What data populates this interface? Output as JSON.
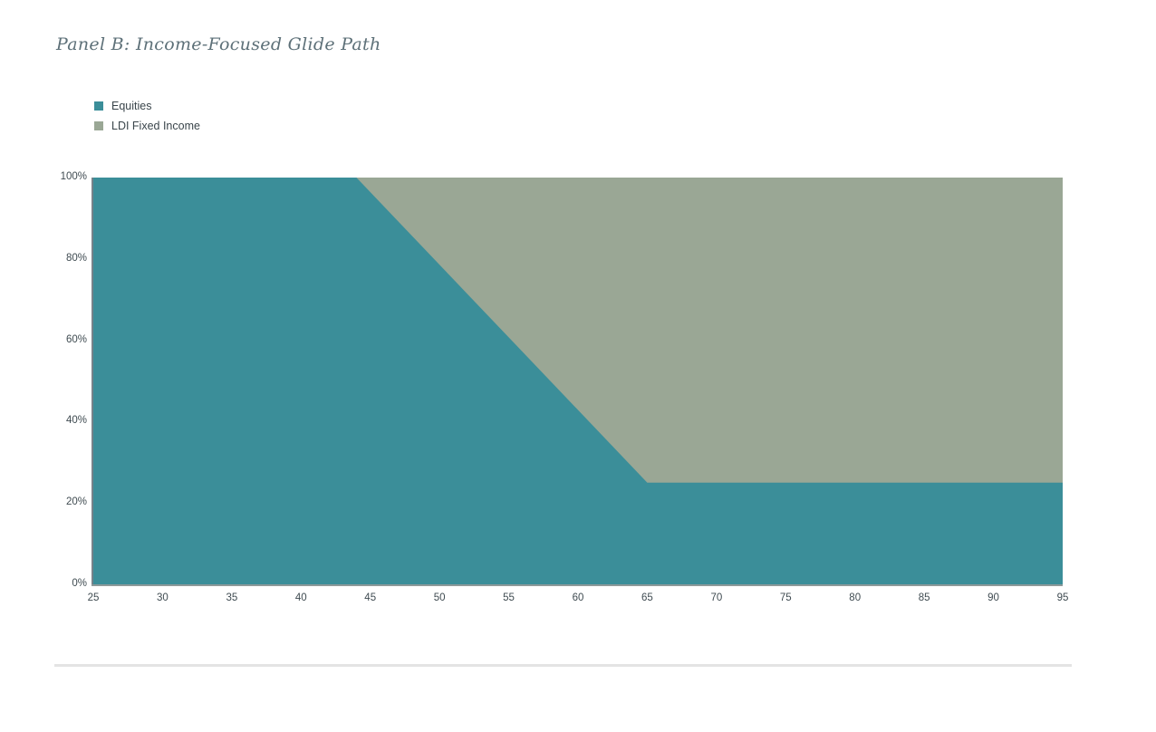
{
  "page": {
    "title": "Panel B: Income-Focused Glide Path"
  },
  "legend": {
    "position": "top-left",
    "items": [
      {
        "label": "Equities",
        "color": "#3b8e99"
      },
      {
        "label": "LDI Fixed Income",
        "color": "#9aa795"
      }
    ]
  },
  "chart_data": {
    "type": "area",
    "stacked": true,
    "title": "Panel B: Income-Focused Glide Path",
    "xlabel": "",
    "ylabel": "",
    "xlim": [
      25,
      95
    ],
    "ylim": [
      0,
      100
    ],
    "grid": false,
    "legend_position": "top-left",
    "x_ticks": [
      25,
      30,
      35,
      40,
      45,
      50,
      55,
      60,
      65,
      70,
      75,
      80,
      85,
      90,
      95
    ],
    "y_ticks": [
      {
        "value": 0,
        "label": "0%"
      },
      {
        "value": 20,
        "label": "20%"
      },
      {
        "value": 40,
        "label": "40%"
      },
      {
        "value": 60,
        "label": "60%"
      },
      {
        "value": 80,
        "label": "80%"
      },
      {
        "value": 100,
        "label": "100%"
      }
    ],
    "series": [
      {
        "name": "Equities",
        "color": "#3b8e99",
        "breakpoints": [
          [
            25,
            100
          ],
          [
            44,
            100
          ],
          [
            65,
            25
          ],
          [
            95,
            25
          ]
        ]
      },
      {
        "name": "LDI Fixed Income",
        "color": "#9aa795",
        "breakpoints": [
          [
            25,
            0
          ],
          [
            44,
            0
          ],
          [
            65,
            75
          ],
          [
            95,
            75
          ]
        ]
      }
    ]
  },
  "colors": {
    "equities": "#3b8e99",
    "ldi_fixed_income": "#9aa795",
    "title_text": "#5d7078",
    "axis_text": "#3f4b51",
    "y_axis_line": "#76828a",
    "x_axis_line": "#8e9a9a",
    "divider": "#e4e4e4"
  }
}
